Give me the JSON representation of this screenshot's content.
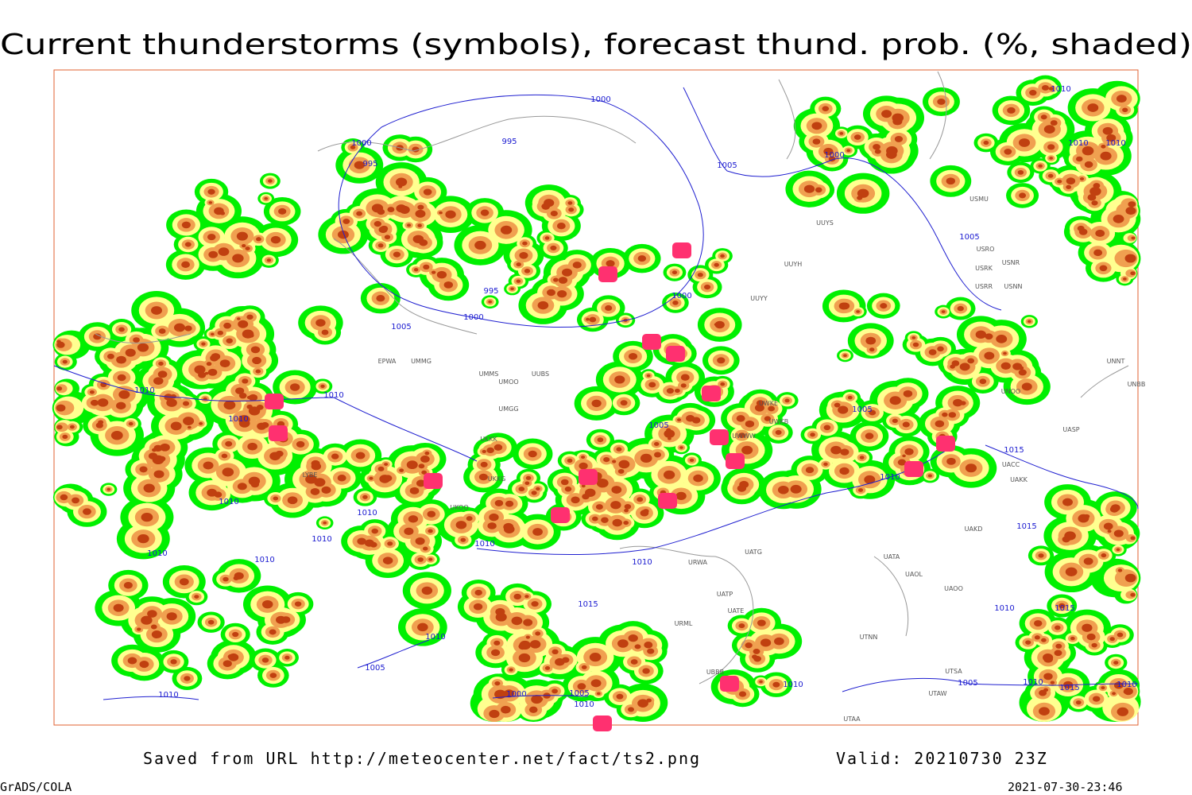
{
  "title": "Current thunderstorms (symbols), forecast thund. prob. (%, shaded)",
  "footer": {
    "saved": "Saved from URL http://meteocenter.net/fact/ts2.png",
    "valid": "Valid: 20210730 23Z",
    "software": "GrADS/COLA",
    "timestamp": "2021-07-30-23:46"
  },
  "stations": [
    "EPWA",
    "UMMG",
    "UMMS",
    "UMOO",
    "UUBS",
    "UMGG",
    "UKKK",
    "UKKG",
    "UKOO",
    "LYBE",
    "UUYY",
    "UUYH",
    "UUYS",
    "USRR",
    "USNN",
    "USRK",
    "USNR",
    "USRO",
    "USMU",
    "UNOO",
    "UNBB",
    "UNNT",
    "UASP",
    "UACC",
    "UAKK",
    "UAKD",
    "UATA",
    "UAOL",
    "UAOO",
    "UATG",
    "URWA",
    "UATP",
    "UATE",
    "URML",
    "UTNN",
    "UTSA",
    "UTAA",
    "UTAW",
    "UBBB",
    "UWKE",
    "UWWW",
    "UWKB"
  ],
  "isobar_labels": [
    "1000",
    "995",
    "1000",
    "995",
    "1005",
    "1000",
    "1010",
    "1010",
    "1010",
    "1005",
    "995",
    "1000",
    "1000",
    "1005",
    "1010",
    "1010",
    "1010",
    "1005",
    "1005",
    "1015",
    "1010",
    "1010",
    "1010",
    "1010",
    "1010",
    "1010",
    "1010",
    "1010",
    "1015",
    "1015",
    "1010",
    "1015",
    "1010",
    "1005",
    "1010",
    "1000",
    "1005",
    "1010",
    "1010",
    "1005",
    "1010",
    "1015",
    "1010"
  ]
}
